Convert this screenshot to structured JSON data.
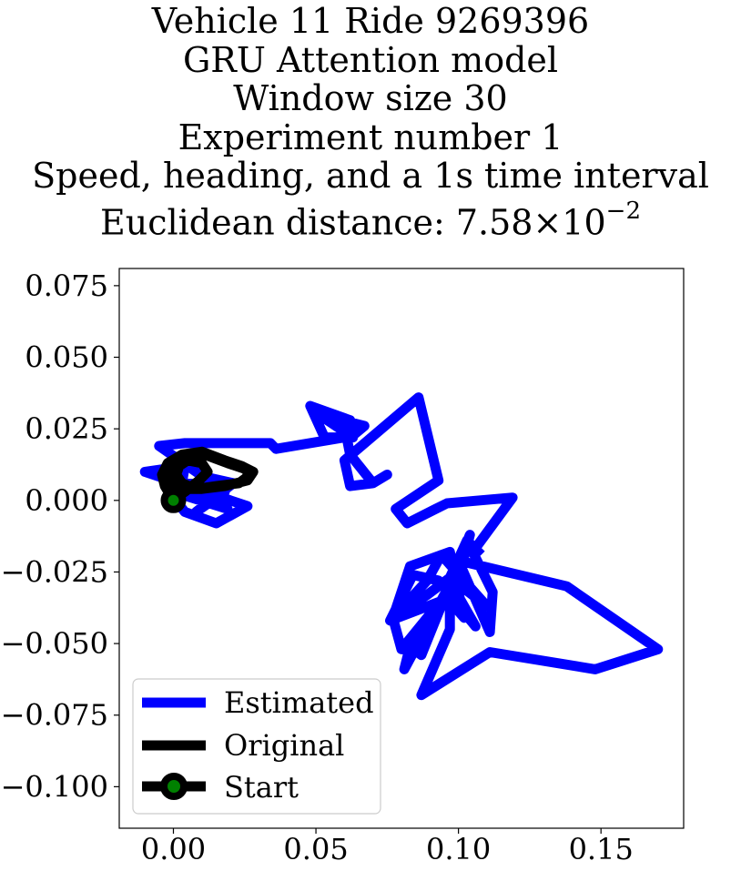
{
  "chart_data": {
    "type": "line",
    "title_lines": [
      "Vehicle 11 Ride 9269396",
      "GRU Attention model",
      "Window size 30",
      "Experiment number 1",
      "Speed, heading, and a 1s time interval"
    ],
    "title_distance_prefix": "Euclidean distance: 7.58×10",
    "title_distance_exponent": "−2",
    "xlabel": "",
    "ylabel": "",
    "xlim": [
      -0.019,
      0.179
    ],
    "ylim": [
      -0.1145,
      0.081
    ],
    "xticks": [
      0.0,
      0.05,
      0.1,
      0.15
    ],
    "xtick_labels": [
      "0.00",
      "0.05",
      "0.10",
      "0.15"
    ],
    "yticks": [
      0.075,
      0.05,
      0.025,
      0.0,
      -0.025,
      -0.05,
      -0.075,
      -0.1
    ],
    "ytick_labels": [
      "0.075",
      "0.050",
      "0.025",
      "0.000",
      "−0.025",
      "−0.050",
      "−0.075",
      "−0.100"
    ],
    "grid": false,
    "legend_position": "lower-left",
    "series": [
      {
        "name": "Estimated",
        "color": "#0000ff",
        "x": [
          0.0,
          0.004,
          0.015,
          0.026,
          -0.01,
          0.004,
          0.003,
          0.018,
          0.003,
          0.019,
          0.012,
          0.021,
          0.008,
          0.018,
          -0.005,
          0.004,
          0.034,
          0.036,
          0.06,
          0.053,
          0.048,
          0.062,
          0.063,
          0.051,
          0.067,
          0.061,
          0.062,
          0.07,
          0.075,
          0.07,
          0.062,
          0.06,
          0.086,
          0.093,
          0.078,
          0.082,
          0.092,
          0.096,
          0.119,
          0.105,
          0.112,
          0.111,
          0.1,
          0.138,
          0.17,
          0.148,
          0.111,
          0.087,
          0.097,
          0.097,
          0.076,
          0.084,
          0.093,
          0.101,
          0.106,
          0.098,
          0.08,
          0.077,
          0.083,
          0.097,
          0.1,
          0.102,
          0.095,
          0.081,
          0.083,
          0.087,
          0.104,
          0.099,
          0.101,
          0.11,
          0.094,
          0.089,
          0.077,
          0.089,
          0.097,
          0.103,
          0.108
        ],
        "y": [
          0.001,
          -0.004,
          -0.008,
          -0.002,
          0.01,
          0.012,
          0.006,
          0.005,
          0.002,
          -0.003,
          0.008,
          0.006,
          -0.004,
          0.003,
          0.019,
          0.02,
          0.02,
          0.018,
          0.022,
          0.022,
          0.033,
          0.028,
          0.022,
          0.03,
          0.026,
          0.021,
          0.016,
          0.006,
          0.009,
          0.006,
          0.005,
          0.014,
          0.036,
          0.007,
          -0.003,
          -0.008,
          -0.003,
          -0.001,
          0.001,
          -0.018,
          -0.032,
          -0.046,
          -0.021,
          -0.03,
          -0.052,
          -0.059,
          -0.053,
          -0.068,
          -0.045,
          -0.034,
          -0.042,
          -0.026,
          -0.028,
          -0.038,
          -0.044,
          -0.03,
          -0.052,
          -0.041,
          -0.023,
          -0.018,
          -0.032,
          -0.041,
          -0.033,
          -0.059,
          -0.051,
          -0.054,
          -0.012,
          -0.031,
          -0.03,
          -0.037,
          -0.019,
          -0.028,
          -0.041,
          -0.033,
          -0.027,
          -0.014,
          -0.019
        ]
      },
      {
        "name": "Original",
        "color": "#000000",
        "x": [
          0.0,
          -0.003,
          -0.004,
          -0.002,
          0.003,
          0.01,
          0.018,
          0.024,
          0.028,
          0.026,
          0.018,
          0.01,
          0.004,
          0.0,
          -0.002,
          -0.001,
          0.004,
          0.011,
          0.019,
          0.025,
          0.027,
          0.023,
          0.015,
          0.008,
          0.003,
          0.001,
          0.002,
          0.005,
          0.01,
          0.012,
          0.009,
          0.004,
          0.0
        ],
        "y": [
          0.0,
          0.005,
          0.009,
          0.013,
          0.016,
          0.017,
          0.014,
          0.012,
          0.01,
          0.007,
          0.005,
          0.004,
          0.004,
          0.006,
          0.009,
          0.012,
          0.015,
          0.016,
          0.013,
          0.011,
          0.009,
          0.006,
          0.005,
          0.004,
          0.006,
          0.009,
          0.012,
          0.014,
          0.013,
          0.01,
          0.007,
          0.003,
          0.0
        ]
      }
    ],
    "start": {
      "name": "Start",
      "x": 0.0,
      "y": 0.0,
      "marker_face": "#008000",
      "marker_edge": "#000000",
      "line_color": "#000000"
    },
    "legend": {
      "estimated_label": "Estimated",
      "original_label": "Original",
      "start_label": "Start"
    }
  }
}
